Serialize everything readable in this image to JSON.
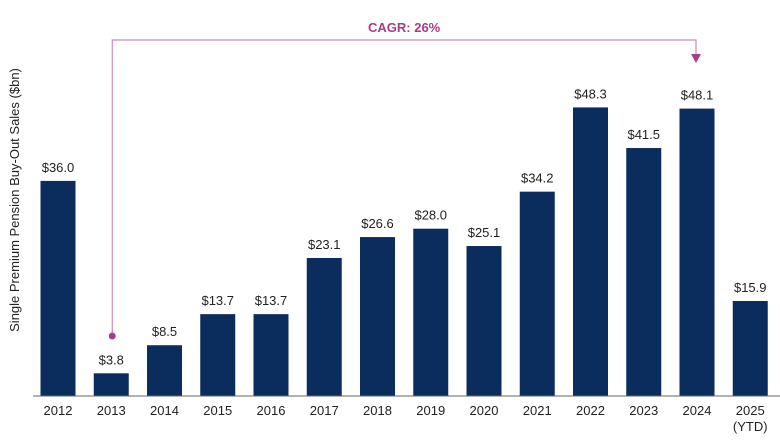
{
  "chart_data": {
    "type": "bar",
    "title": "",
    "xlabel": "",
    "ylabel": "Single Premium Pension Buy-Out Sales ($bn)",
    "categories": [
      "2012",
      "2013",
      "2014",
      "2015",
      "2016",
      "2017",
      "2018",
      "2019",
      "2020",
      "2021",
      "2022",
      "2023",
      "2024",
      "2025"
    ],
    "category_sublabels": [
      "",
      "",
      "",
      "",
      "",
      "",
      "",
      "",
      "",
      "",
      "",
      "",
      "",
      "(YTD)"
    ],
    "values": [
      36.0,
      3.8,
      8.5,
      13.7,
      13.7,
      23.1,
      26.6,
      28.0,
      25.1,
      34.2,
      48.3,
      41.5,
      48.1,
      15.9
    ],
    "data_labels": [
      "$36.0",
      "$3.8",
      "$8.5",
      "$13.7",
      "$13.7",
      "$23.1",
      "$26.6",
      "$28.0",
      "$25.1",
      "$34.2",
      "$48.3",
      "$41.5",
      "$48.1",
      "$15.9"
    ],
    "ylim": [
      0,
      50
    ],
    "grid": false,
    "bar_color": "#0b2d5e",
    "annotation": {
      "text": "CAGR: 26%",
      "from": "2013",
      "to": "2024",
      "color": "#a83c8c"
    }
  }
}
